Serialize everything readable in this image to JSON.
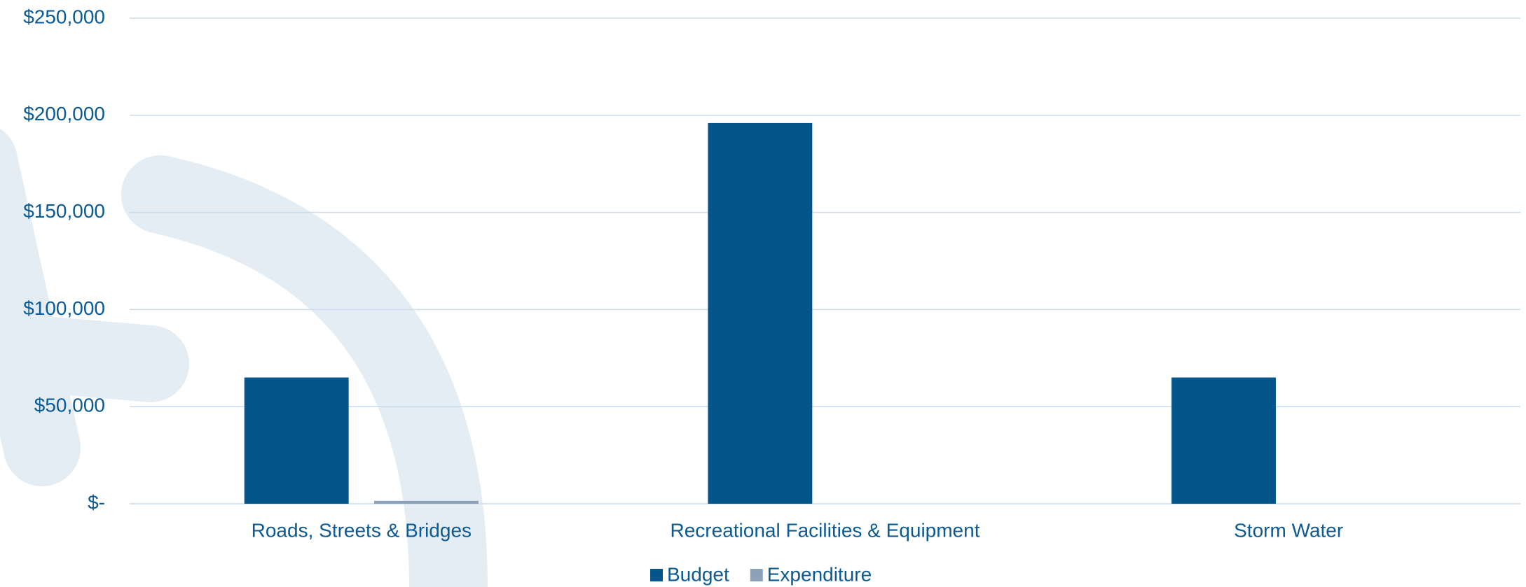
{
  "chart_data": {
    "type": "bar",
    "categories": [
      "Roads, Streets & Bridges",
      "Recreational Facilities & Equipment",
      "Storm Water"
    ],
    "series": [
      {
        "name": "Budget",
        "color": "#03558a",
        "values": [
          65000,
          196000,
          65000
        ]
      },
      {
        "name": "Expenditure",
        "color": "#8da2b8",
        "values": [
          1500,
          0,
          0
        ]
      }
    ],
    "ylim": [
      0,
      250000
    ],
    "yticks": [
      {
        "value": 0,
        "label": "$-"
      },
      {
        "value": 50000,
        "label": "$50,000"
      },
      {
        "value": 100000,
        "label": "$100,000"
      },
      {
        "value": 150000,
        "label": "$150,000"
      },
      {
        "value": 200000,
        "label": "$200,000"
      },
      {
        "value": 250000,
        "label": "$250,000"
      }
    ],
    "grid": true
  }
}
